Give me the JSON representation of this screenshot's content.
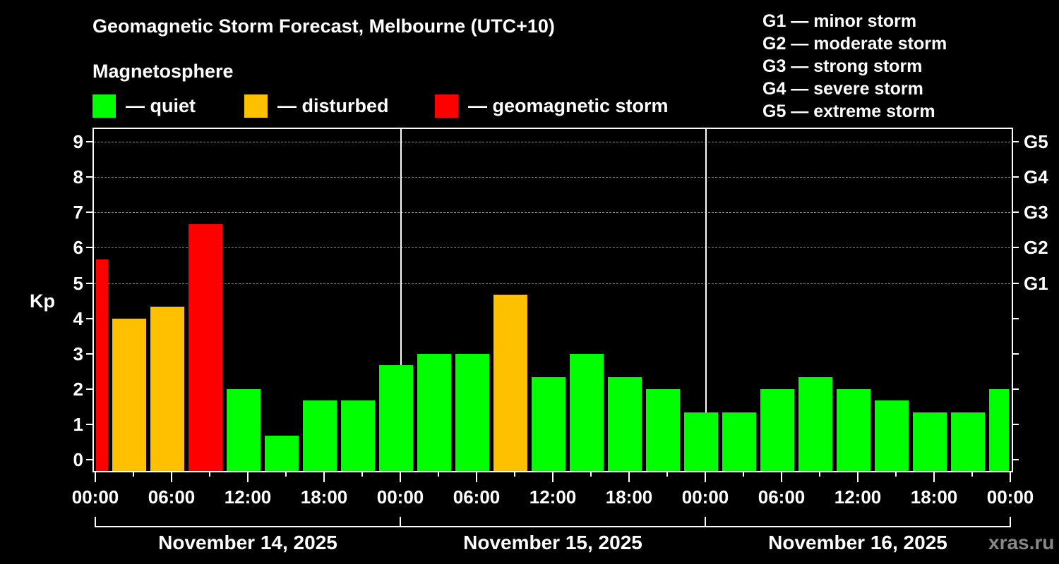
{
  "title": "Geomagnetic Storm Forecast, Melbourne (UTC+10)",
  "legend": {
    "heading": "Magnetosphere",
    "items": [
      {
        "label": "— quiet",
        "color": "#00ff00"
      },
      {
        "label": "— disturbed",
        "color": "#ffc000"
      },
      {
        "label": "— geomagnetic storm",
        "color": "#ff0000"
      }
    ]
  },
  "g_scale_legend": [
    "G1 — minor storm",
    "G2 — moderate storm",
    "G3 — strong storm",
    "G4 — severe storm",
    "G5 — extreme storm"
  ],
  "watermark": "xras.ru",
  "chart_data": {
    "type": "bar",
    "title": "Geomagnetic Storm Forecast, Melbourne (UTC+10)",
    "ylabel": "Kp",
    "ylim": [
      0,
      9
    ],
    "yticks": [
      0,
      1,
      2,
      3,
      4,
      5,
      6,
      7,
      8,
      9
    ],
    "y2_ticks": [
      {
        "kp": 5,
        "label": "G1"
      },
      {
        "kp": 6,
        "label": "G2"
      },
      {
        "kp": 7,
        "label": "G3"
      },
      {
        "kp": 8,
        "label": "G4"
      },
      {
        "kp": 9,
        "label": "G5"
      }
    ],
    "grid": "dashed at Kp 5-9",
    "xtick_labels": [
      "00:00",
      "06:00",
      "12:00",
      "18:00",
      "00:00",
      "06:00",
      "12:00",
      "18:00",
      "00:00",
      "06:00",
      "12:00",
      "18:00",
      "00:00"
    ],
    "dates": [
      "November 14, 2025",
      "November 15, 2025",
      "November 16, 2025"
    ],
    "bin_hours": 3,
    "bars": [
      {
        "day": "Nov 14",
        "start": "22:30 (prev)",
        "kp": 5.67,
        "status": "storm"
      },
      {
        "day": "Nov 14",
        "start": "01:30",
        "kp": 4.0,
        "status": "disturbed"
      },
      {
        "day": "Nov 14",
        "start": "04:30",
        "kp": 4.33,
        "status": "disturbed"
      },
      {
        "day": "Nov 14",
        "start": "07:30",
        "kp": 6.67,
        "status": "storm"
      },
      {
        "day": "Nov 14",
        "start": "10:30",
        "kp": 2.0,
        "status": "quiet"
      },
      {
        "day": "Nov 14",
        "start": "13:30",
        "kp": 0.67,
        "status": "quiet"
      },
      {
        "day": "Nov 14",
        "start": "16:30",
        "kp": 1.67,
        "status": "quiet"
      },
      {
        "day": "Nov 14",
        "start": "19:30",
        "kp": 1.67,
        "status": "quiet"
      },
      {
        "day": "Nov 14",
        "start": "22:30",
        "kp": 2.67,
        "status": "quiet"
      },
      {
        "day": "Nov 15",
        "start": "01:30",
        "kp": 3.0,
        "status": "quiet"
      },
      {
        "day": "Nov 15",
        "start": "04:30",
        "kp": 3.0,
        "status": "quiet"
      },
      {
        "day": "Nov 15",
        "start": "07:30",
        "kp": 4.67,
        "status": "disturbed"
      },
      {
        "day": "Nov 15",
        "start": "10:30",
        "kp": 2.33,
        "status": "quiet"
      },
      {
        "day": "Nov 15",
        "start": "13:30",
        "kp": 3.0,
        "status": "quiet"
      },
      {
        "day": "Nov 15",
        "start": "16:30",
        "kp": 2.33,
        "status": "quiet"
      },
      {
        "day": "Nov 15",
        "start": "19:30",
        "kp": 2.0,
        "status": "quiet"
      },
      {
        "day": "Nov 15",
        "start": "22:30",
        "kp": 1.33,
        "status": "quiet"
      },
      {
        "day": "Nov 16",
        "start": "01:30",
        "kp": 1.33,
        "status": "quiet"
      },
      {
        "day": "Nov 16",
        "start": "04:30",
        "kp": 2.0,
        "status": "quiet"
      },
      {
        "day": "Nov 16",
        "start": "07:30",
        "kp": 2.33,
        "status": "quiet"
      },
      {
        "day": "Nov 16",
        "start": "10:30",
        "kp": 2.0,
        "status": "quiet"
      },
      {
        "day": "Nov 16",
        "start": "13:30",
        "kp": 1.67,
        "status": "quiet"
      },
      {
        "day": "Nov 16",
        "start": "16:30",
        "kp": 1.33,
        "status": "quiet"
      },
      {
        "day": "Nov 16",
        "start": "19:30",
        "kp": 1.33,
        "status": "quiet"
      },
      {
        "day": "Nov 16",
        "start": "22:30",
        "kp": 2.0,
        "status": "quiet"
      }
    ],
    "colors": {
      "quiet": "#00ff00",
      "disturbed": "#ffc000",
      "storm": "#ff0000"
    }
  }
}
